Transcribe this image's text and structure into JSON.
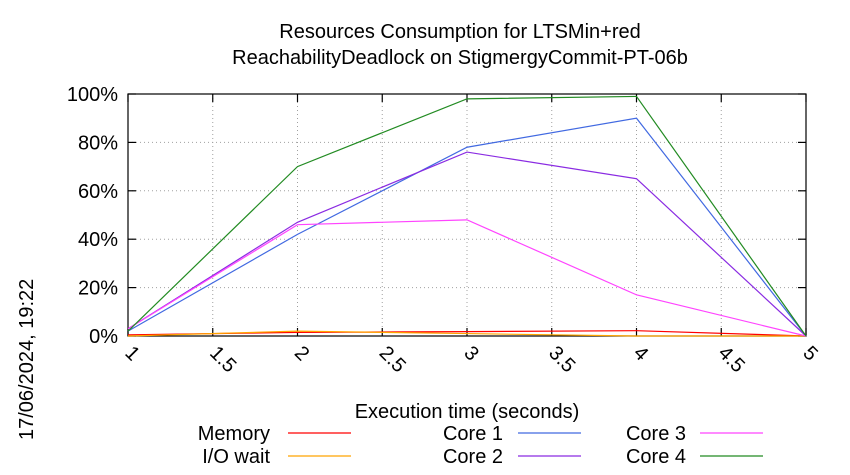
{
  "chart_data": {
    "type": "line",
    "title": [
      "Resources Consumption for LTSMin+red",
      "ReachabilityDeadlock on StigmergyCommit-PT-06b"
    ],
    "xlabel": "Execution time (seconds)",
    "ylabel": "",
    "side_label": "17/06/2024, 19:22",
    "xlim": [
      1,
      5
    ],
    "ylim": [
      0,
      100
    ],
    "x_ticks": [
      "1",
      "1.5",
      "2",
      "2.5",
      "3",
      "3.5",
      "4",
      "4.5",
      "5"
    ],
    "y_ticks": [
      "0%",
      "20%",
      "40%",
      "60%",
      "80%",
      "100%"
    ],
    "grid": true,
    "legend_position": "bottom",
    "x": [
      1,
      2,
      3,
      4,
      5
    ],
    "series": [
      {
        "name": "Memory",
        "color": "#ff0000",
        "values": [
          0.5,
          1.5,
          1.8,
          2.2,
          0
        ]
      },
      {
        "name": "I/O wait",
        "color": "#ffa500",
        "values": [
          0,
          2,
          1,
          0,
          0
        ]
      },
      {
        "name": "Core 1",
        "color": "#4169e1",
        "values": [
          2,
          42,
          78,
          90,
          0
        ]
      },
      {
        "name": "Core 2",
        "color": "#8a2be2",
        "values": [
          3,
          47,
          76,
          65,
          0
        ]
      },
      {
        "name": "Core 3",
        "color": "#ff44ff",
        "values": [
          3,
          46,
          48,
          17,
          0
        ]
      },
      {
        "name": "Core 4",
        "color": "#228b22",
        "values": [
          2,
          70,
          98,
          99,
          0
        ]
      }
    ]
  }
}
